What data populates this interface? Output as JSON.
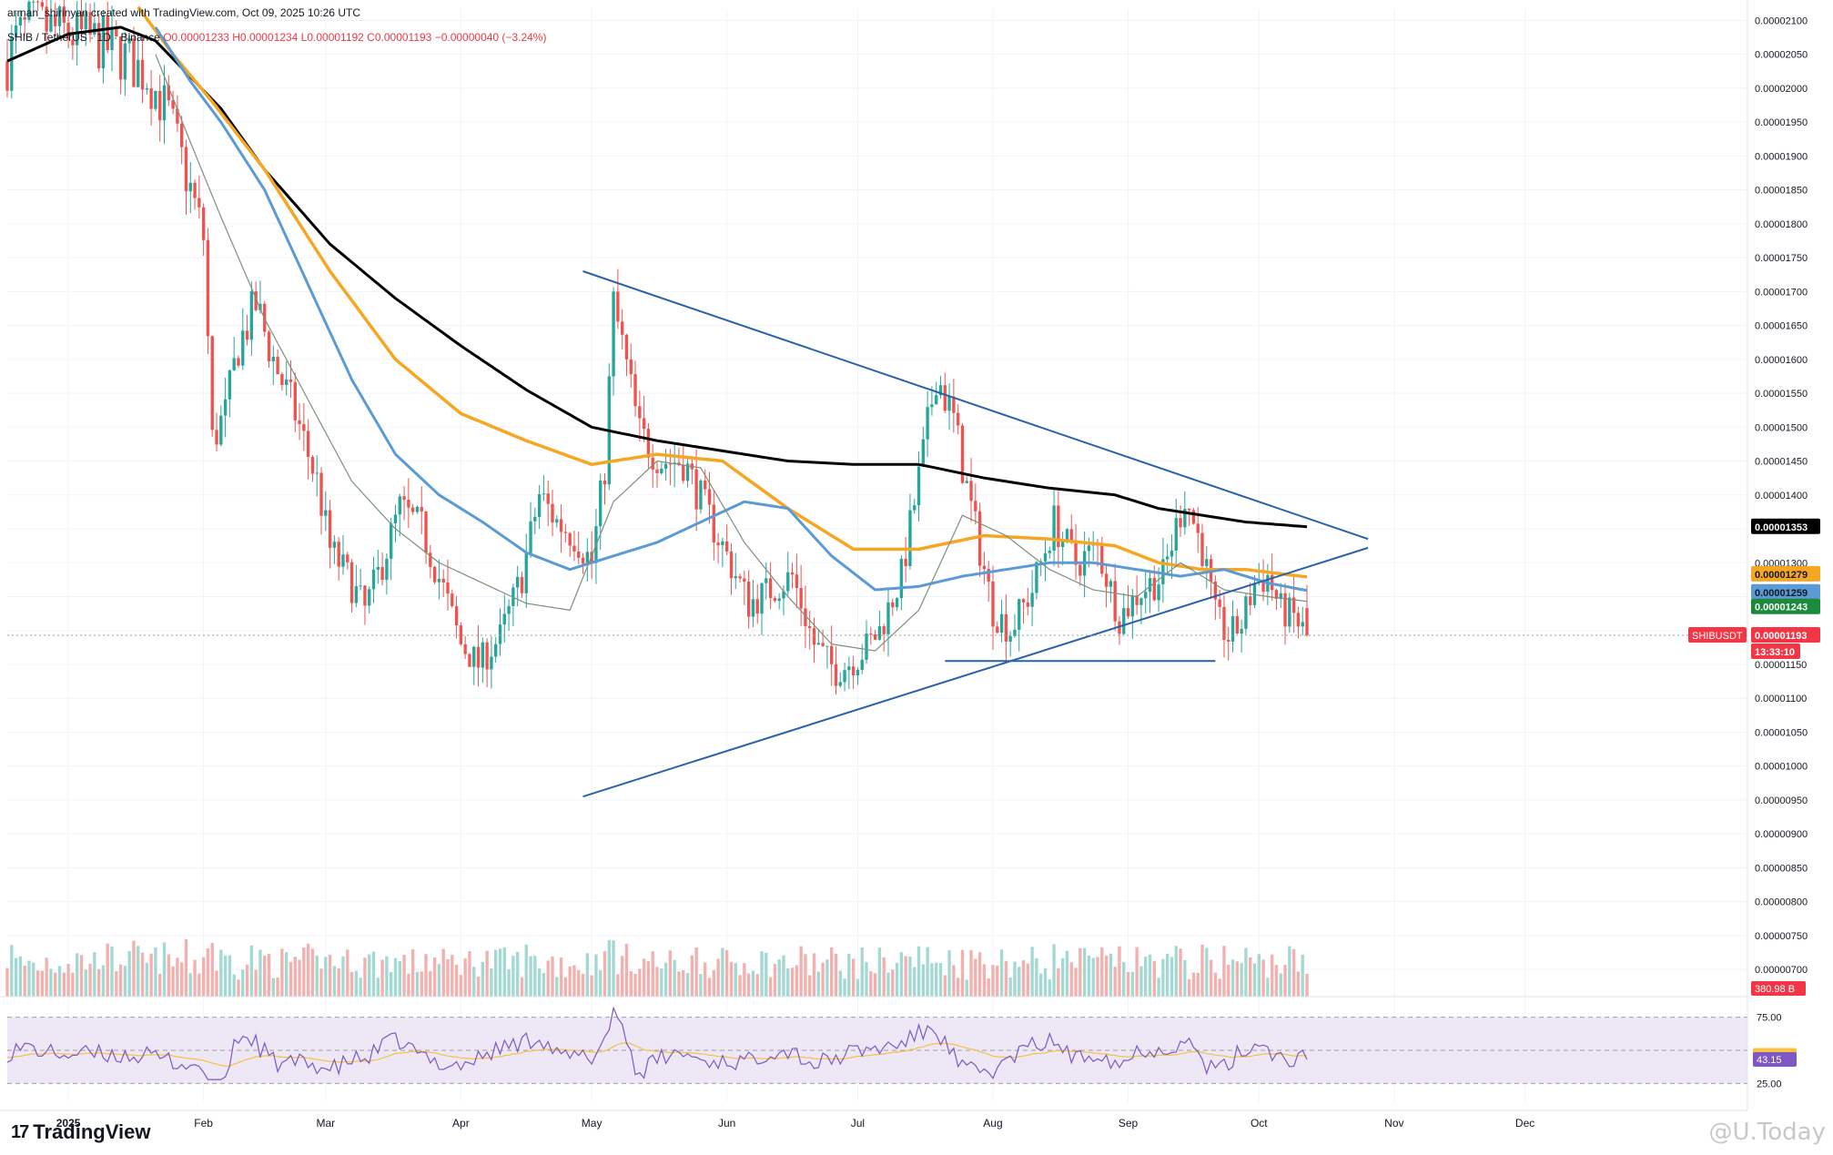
{
  "header": {
    "credit": "arman_shirinyan created with TradingView.com, Oct 09, 2025 10:26 UTC",
    "symbol": "SHIB / TetherUS · 1D · Binance",
    "ohlc": "O0.00001233 H0.00001234 L0.00001192 C0.00001193 −0.00000040 (−3.24%)"
  },
  "brand": {
    "logo": "17",
    "name": "TradingView"
  },
  "watermark": "@U.Today",
  "chart_data": {
    "type": "candlestick",
    "title": "SHIB / TetherUS · 1D · Binance",
    "colors": {
      "up": "#26a69a",
      "down": "#ef5350",
      "ma200": "#000000",
      "ma100": "#f5a623",
      "ma50": "#5b9bd5",
      "ma20": "#7d8f7d",
      "trendlines": "#2962a8",
      "rsi_band": "#ede7f6",
      "rsi_line": "#7e57c2",
      "rsi_ma": "#f5c242"
    },
    "price_axis": {
      "min": 6.8e-06,
      "max": 2.11e-05,
      "ticks": [
        "0.00002100",
        "0.00002050",
        "0.00002000",
        "0.00001950",
        "0.00001900",
        "0.00001850",
        "0.00001800",
        "0.00001750",
        "0.00001700",
        "0.00001650",
        "0.00001600",
        "0.00001550",
        "0.00001500",
        "0.00001450",
        "0.00001400",
        "0.00001350",
        "0.00001300",
        "0.00001250",
        "0.00001200",
        "0.00001150",
        "0.00001100",
        "0.00001050",
        "0.00001000",
        "0.00000950",
        "0.00000900",
        "0.00000850",
        "0.00000800",
        "0.00000750",
        "0.00000700"
      ]
    },
    "time_axis": {
      "labels": [
        "2025",
        "Feb",
        "Mar",
        "Apr",
        "May",
        "Jun",
        "Jul",
        "Aug",
        "Sep",
        "Oct",
        "Nov",
        "Dec"
      ],
      "label_days": [
        0,
        31,
        59,
        90,
        120,
        151,
        181,
        212,
        243,
        273,
        304,
        334
      ],
      "day_range": [
        -14,
        385
      ]
    },
    "price_labels": [
      {
        "value": "0.00001353",
        "bg": "#000000",
        "fg": "#ffffff"
      },
      {
        "value": "0.00001279",
        "bg": "#f5a623",
        "fg": "#131722"
      },
      {
        "value": "0.00001259",
        "bg": "#5b9bd5",
        "fg": "#131722"
      },
      {
        "value": "0.00001243",
        "bg": "#1b8a3a",
        "fg": "#ffffff"
      },
      {
        "value": "0.00001193",
        "bg": "#f23645",
        "fg": "#ffffff"
      },
      {
        "value": "13:33:10",
        "bg": "#f23645",
        "fg": "#ffffff"
      }
    ],
    "symbol_tag": "SHIBUSDT",
    "volume_label": "380.98 B",
    "ohlc_anchors": {
      "day": [
        -14,
        -12,
        -9,
        -5,
        0,
        6,
        12,
        18,
        23,
        28,
        31,
        33,
        36,
        39,
        43,
        47,
        52,
        57,
        60,
        64,
        68,
        72,
        76,
        81,
        86,
        90,
        94,
        99,
        104,
        108,
        112,
        116,
        120,
        123,
        125,
        127,
        131,
        136,
        141,
        146,
        151,
        156,
        161,
        166,
        171,
        176,
        181,
        186,
        191,
        196,
        199,
        203,
        206,
        212,
        216,
        221,
        226,
        231,
        236,
        241,
        246,
        251,
        256,
        260,
        263,
        266,
        269,
        272,
        275,
        278,
        281,
        284
      ],
      "close": [
        2.04,
        2.07,
        2.09,
        2.09,
        2.08,
        2.07,
        2.05,
        2.02,
        1.96,
        1.85,
        1.78,
        1.48,
        1.52,
        1.62,
        1.68,
        1.6,
        1.52,
        1.42,
        1.32,
        1.28,
        1.23,
        1.3,
        1.38,
        1.35,
        1.26,
        1.18,
        1.15,
        1.19,
        1.28,
        1.4,
        1.36,
        1.34,
        1.3,
        1.44,
        1.68,
        1.62,
        1.49,
        1.45,
        1.45,
        1.38,
        1.31,
        1.24,
        1.26,
        1.28,
        1.18,
        1.14,
        1.16,
        1.2,
        1.28,
        1.46,
        1.58,
        1.51,
        1.41,
        1.23,
        1.2,
        1.26,
        1.36,
        1.3,
        1.32,
        1.22,
        1.26,
        1.28,
        1.4,
        1.32,
        1.22,
        1.19,
        1.21,
        1.27,
        1.28,
        1.23,
        1.22,
        1.19
      ]
    },
    "moving_averages": [
      {
        "name": "MA200",
        "day": [
          -14,
          0,
          12,
          20,
          35,
          45,
          60,
          75,
          90,
          105,
          120,
          135,
          150,
          165,
          180,
          195,
          210,
          225,
          240,
          250,
          260,
          270,
          284
        ],
        "value": [
          2.04,
          2.08,
          2.09,
          2.07,
          1.97,
          1.88,
          1.77,
          1.69,
          1.62,
          1.555,
          1.5,
          1.48,
          1.465,
          1.45,
          1.445,
          1.445,
          1.425,
          1.41,
          1.4,
          1.38,
          1.37,
          1.36,
          1.353
        ]
      },
      {
        "name": "MA100",
        "day": [
          16,
          24,
          33,
          45,
          60,
          75,
          90,
          105,
          120,
          135,
          150,
          165,
          180,
          195,
          210,
          225,
          240,
          250,
          260,
          270,
          284
        ],
        "value": [
          2.12,
          2.05,
          1.98,
          1.88,
          1.73,
          1.6,
          1.52,
          1.48,
          1.445,
          1.46,
          1.45,
          1.38,
          1.32,
          1.32,
          1.34,
          1.335,
          1.325,
          1.3,
          1.29,
          1.29,
          1.279
        ]
      },
      {
        "name": "MA50",
        "day": [
          20,
          28,
          35,
          45,
          55,
          65,
          75,
          85,
          95,
          105,
          115,
          125,
          135,
          145,
          155,
          165,
          175,
          185,
          195,
          205,
          215,
          225,
          235,
          245,
          255,
          265,
          275,
          284
        ],
        "value": [
          2.09,
          2.01,
          1.95,
          1.85,
          1.71,
          1.57,
          1.46,
          1.4,
          1.36,
          1.315,
          1.29,
          1.31,
          1.33,
          1.36,
          1.39,
          1.38,
          1.31,
          1.26,
          1.265,
          1.28,
          1.29,
          1.3,
          1.3,
          1.29,
          1.28,
          1.29,
          1.27,
          1.259
        ]
      },
      {
        "name": "MA20",
        "day": [
          20,
          28,
          35,
          45,
          55,
          65,
          75,
          85,
          95,
          105,
          115,
          125,
          135,
          145,
          155,
          165,
          175,
          185,
          195,
          205,
          215,
          225,
          235,
          245,
          255,
          265,
          275,
          284
        ],
        "value": [
          2.05,
          1.92,
          1.81,
          1.66,
          1.54,
          1.42,
          1.35,
          1.3,
          1.27,
          1.24,
          1.23,
          1.39,
          1.45,
          1.44,
          1.33,
          1.25,
          1.18,
          1.17,
          1.23,
          1.37,
          1.34,
          1.29,
          1.26,
          1.25,
          1.3,
          1.26,
          1.25,
          1.243
        ]
      }
    ],
    "trendlines": [
      {
        "name": "descending",
        "from": [
          118,
          1.73
        ],
        "to": [
          298,
          1.335
        ]
      },
      {
        "name": "ascending",
        "from": [
          118,
          0.955
        ],
        "to": [
          298,
          1.322
        ]
      },
      {
        "name": "horizontal-support",
        "from": [
          201,
          1.155
        ],
        "to": [
          263,
          1.155
        ]
      }
    ],
    "current_price_line": 1.193,
    "volume": {
      "max_billion": 2200,
      "last_billion": 380.98
    },
    "rsi": {
      "levels": [
        75,
        25
      ],
      "labels": [
        "75.00",
        "46.19",
        "43.15",
        "25.00"
      ],
      "last": 43.15,
      "ma_last": 46.19
    },
    "units_note": "price values ×1e-5 USDT"
  }
}
